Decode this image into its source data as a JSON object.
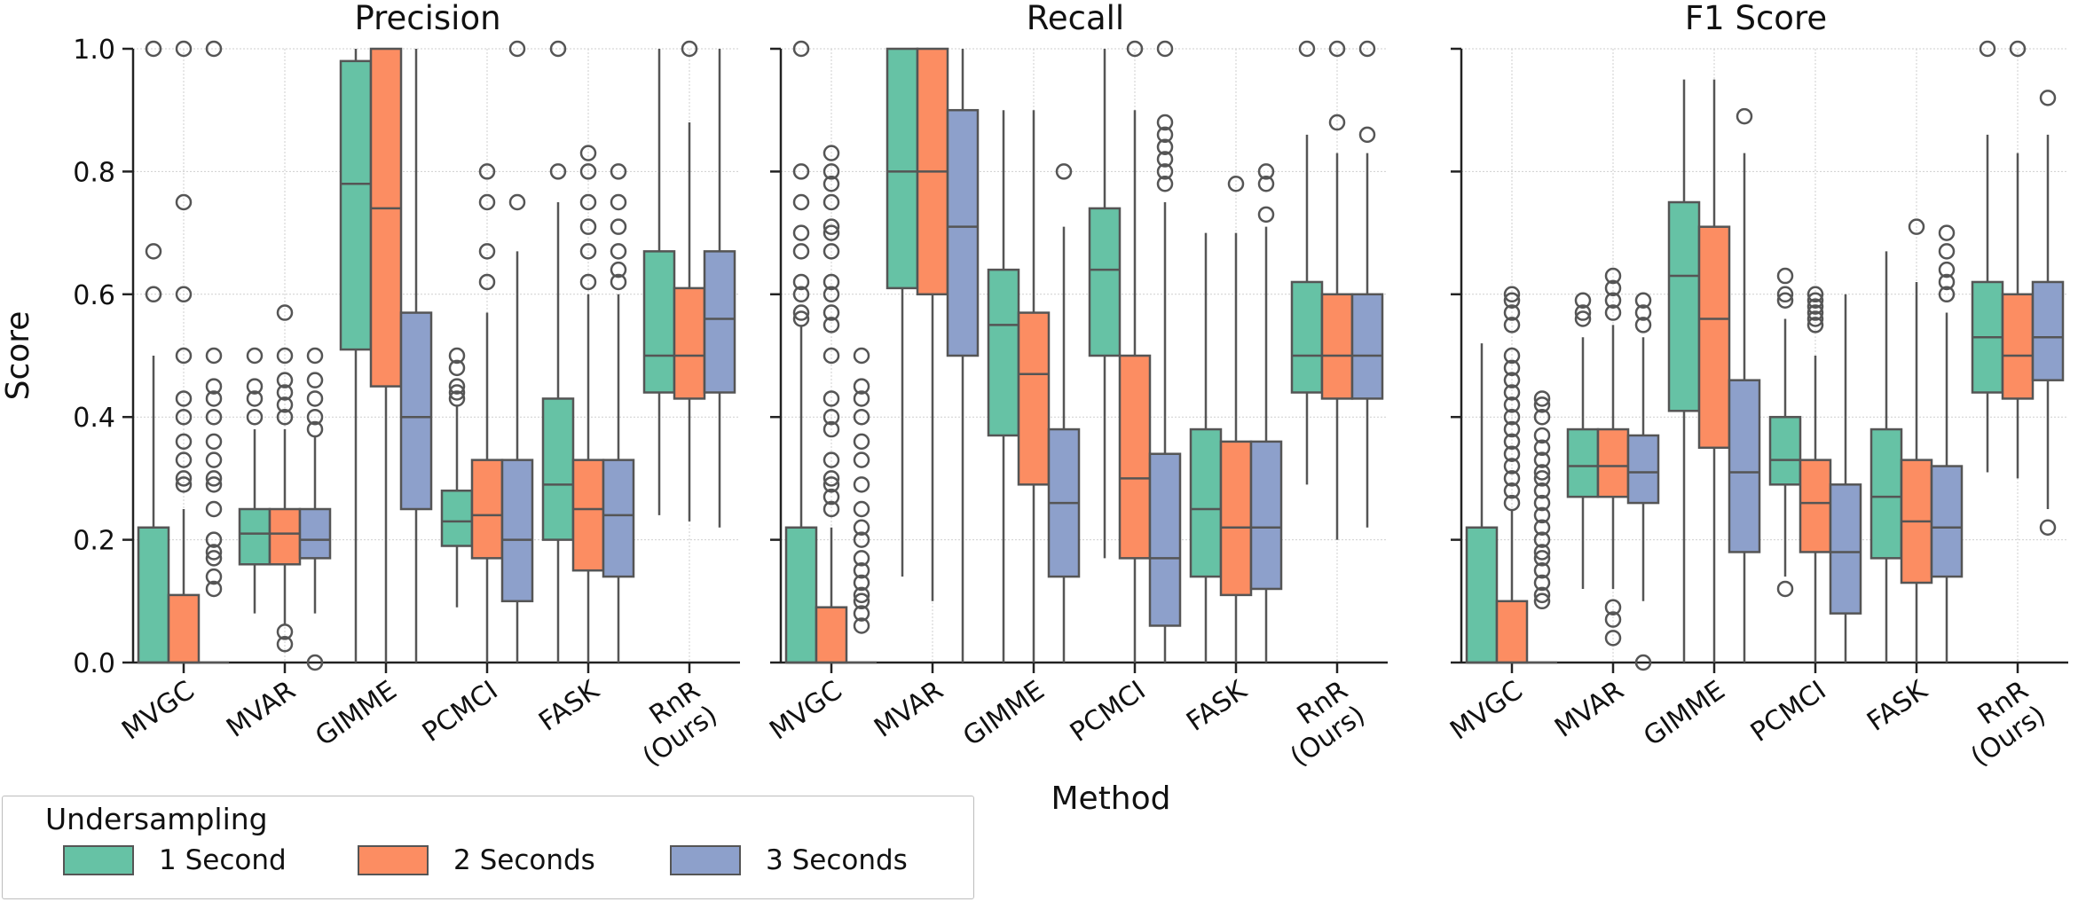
{
  "chart_data": {
    "type": "box",
    "ylabel": "Score",
    "xlabel": "Method",
    "ylim": [
      0,
      1
    ],
    "yticks": [
      "0.0",
      "0.2",
      "0.4",
      "0.6",
      "0.8",
      "1.0"
    ],
    "yticks_values": [
      0,
      0.2,
      0.4,
      0.6,
      0.8,
      1.0
    ],
    "categories": [
      [
        "MVGC"
      ],
      [
        "MVAR"
      ],
      [
        "GIMME"
      ],
      [
        "PCMCI"
      ],
      [
        "FASK"
      ],
      [
        "RnR",
        "(Ours)"
      ]
    ],
    "legend": {
      "title": "Undersampling",
      "position": "bottom-left",
      "entries": [
        "1 Second",
        "2 Seconds",
        "3 Seconds"
      ],
      "colors": [
        "#66c2a5",
        "#fc8d62",
        "#8da0cb"
      ]
    },
    "panels": [
      {
        "title": "Precision",
        "boxes": [
          [
            {
              "q1": 0,
              "median": 0,
              "q3": 0.22,
              "wlo": 0,
              "whi": 0.5,
              "outliers": [
                0.6,
                0.67,
                1.0
              ]
            },
            {
              "q1": 0,
              "median": 0,
              "q3": 0.11,
              "wlo": 0,
              "whi": 0.25,
              "outliers": [
                0.29,
                0.3,
                0.33,
                0.36,
                0.4,
                0.43,
                0.5,
                0.6,
                0.75,
                1.0
              ]
            },
            {
              "q1": 0,
              "median": 0,
              "q3": 0,
              "wlo": 0,
              "whi": 0,
              "outliers": [
                0.12,
                0.14,
                0.17,
                0.18,
                0.2,
                0.25,
                0.29,
                0.3,
                0.33,
                0.36,
                0.4,
                0.43,
                0.45,
                0.5,
                1.0
              ]
            }
          ],
          [
            {
              "q1": 0.16,
              "median": 0.21,
              "q3": 0.25,
              "wlo": 0.08,
              "whi": 0.38,
              "outliers": [
                0.4,
                0.43,
                0.45,
                0.5
              ]
            },
            {
              "q1": 0.16,
              "median": 0.21,
              "q3": 0.25,
              "wlo": 0.06,
              "whi": 0.38,
              "outliers": [
                0.03,
                0.05,
                0.4,
                0.42,
                0.44,
                0.46,
                0.5,
                0.57
              ]
            },
            {
              "q1": 0.17,
              "median": 0.2,
              "q3": 0.25,
              "wlo": 0.08,
              "whi": 0.37,
              "outliers": [
                0.0,
                0.38,
                0.4,
                0.43,
                0.46,
                0.5
              ]
            }
          ],
          [
            {
              "q1": 0.51,
              "median": 0.78,
              "q3": 0.98,
              "wlo": 0,
              "whi": 1.0,
              "outliers": []
            },
            {
              "q1": 0.45,
              "median": 0.74,
              "q3": 1.0,
              "wlo": 0,
              "whi": 1.0,
              "outliers": []
            },
            {
              "q1": 0.25,
              "median": 0.4,
              "q3": 0.57,
              "wlo": 0,
              "whi": 1.0,
              "outliers": []
            }
          ],
          [
            {
              "q1": 0.19,
              "median": 0.23,
              "q3": 0.28,
              "wlo": 0.09,
              "whi": 0.42,
              "outliers": [
                0.43,
                0.44,
                0.45,
                0.48,
                0.5
              ]
            },
            {
              "q1": 0.17,
              "median": 0.24,
              "q3": 0.33,
              "wlo": 0,
              "whi": 0.57,
              "outliers": [
                0.62,
                0.67,
                0.75,
                0.8
              ]
            },
            {
              "q1": 0.1,
              "median": 0.2,
              "q3": 0.33,
              "wlo": 0,
              "whi": 0.67,
              "outliers": [
                0.75,
                1.0
              ]
            }
          ],
          [
            {
              "q1": 0.2,
              "median": 0.29,
              "q3": 0.43,
              "wlo": 0,
              "whi": 0.75,
              "outliers": [
                0.8,
                1.0
              ]
            },
            {
              "q1": 0.15,
              "median": 0.25,
              "q3": 0.33,
              "wlo": 0,
              "whi": 0.6,
              "outliers": [
                0.62,
                0.67,
                0.71,
                0.75,
                0.8,
                0.83
              ]
            },
            {
              "q1": 0.14,
              "median": 0.24,
              "q3": 0.33,
              "wlo": 0,
              "whi": 0.6,
              "outliers": [
                0.62,
                0.64,
                0.67,
                0.71,
                0.75,
                0.8
              ]
            }
          ],
          [
            {
              "q1": 0.44,
              "median": 0.5,
              "q3": 0.67,
              "wlo": 0.24,
              "whi": 1.0,
              "outliers": []
            },
            {
              "q1": 0.43,
              "median": 0.5,
              "q3": 0.61,
              "wlo": 0.23,
              "whi": 0.88,
              "outliers": [
                1.0
              ]
            },
            {
              "q1": 0.44,
              "median": 0.56,
              "q3": 0.67,
              "wlo": 0.22,
              "whi": 1.0,
              "outliers": []
            }
          ]
        ]
      },
      {
        "title": "Recall",
        "boxes": [
          [
            {
              "q1": 0,
              "median": 0,
              "q3": 0.22,
              "wlo": 0,
              "whi": 0.55,
              "outliers": [
                0.56,
                0.57,
                0.6,
                0.62,
                0.67,
                0.7,
                0.75,
                0.8,
                1.0
              ]
            },
            {
              "q1": 0,
              "median": 0,
              "q3": 0.09,
              "wlo": 0,
              "whi": 0.22,
              "outliers": [
                0.25,
                0.27,
                0.29,
                0.3,
                0.33,
                0.38,
                0.4,
                0.43,
                0.5,
                0.55,
                0.57,
                0.6,
                0.62,
                0.67,
                0.7,
                0.71,
                0.75,
                0.78,
                0.8,
                0.83
              ]
            },
            {
              "q1": 0,
              "median": 0,
              "q3": 0,
              "wlo": 0,
              "whi": 0,
              "outliers": [
                0.06,
                0.08,
                0.1,
                0.11,
                0.13,
                0.15,
                0.17,
                0.2,
                0.22,
                0.25,
                0.29,
                0.33,
                0.36,
                0.4,
                0.43,
                0.45,
                0.5
              ]
            }
          ],
          [
            {
              "q1": 0.61,
              "median": 0.8,
              "q3": 1.0,
              "wlo": 0.14,
              "whi": 1.0,
              "outliers": []
            },
            {
              "q1": 0.6,
              "median": 0.8,
              "q3": 1.0,
              "wlo": 0.1,
              "whi": 1.0,
              "outliers": []
            },
            {
              "q1": 0.5,
              "median": 0.71,
              "q3": 0.9,
              "wlo": 0,
              "whi": 1.0,
              "outliers": []
            }
          ],
          [
            {
              "q1": 0.37,
              "median": 0.55,
              "q3": 0.64,
              "wlo": 0,
              "whi": 0.9,
              "outliers": []
            },
            {
              "q1": 0.29,
              "median": 0.47,
              "q3": 0.57,
              "wlo": 0,
              "whi": 0.9,
              "outliers": []
            },
            {
              "q1": 0.14,
              "median": 0.26,
              "q3": 0.38,
              "wlo": 0,
              "whi": 0.71,
              "outliers": [
                0.8
              ]
            }
          ],
          [
            {
              "q1": 0.5,
              "median": 0.64,
              "q3": 0.74,
              "wlo": 0.17,
              "whi": 1.0,
              "outliers": []
            },
            {
              "q1": 0.17,
              "median": 0.3,
              "q3": 0.5,
              "wlo": 0,
              "whi": 0.9,
              "outliers": [
                1.0
              ]
            },
            {
              "q1": 0.06,
              "median": 0.17,
              "q3": 0.34,
              "wlo": 0,
              "whi": 0.75,
              "outliers": [
                0.78,
                0.8,
                0.82,
                0.84,
                0.86,
                0.88,
                1.0
              ]
            }
          ],
          [
            {
              "q1": 0.14,
              "median": 0.25,
              "q3": 0.38,
              "wlo": 0,
              "whi": 0.7,
              "outliers": []
            },
            {
              "q1": 0.11,
              "median": 0.22,
              "q3": 0.36,
              "wlo": 0,
              "whi": 0.7,
              "outliers": [
                0.78
              ]
            },
            {
              "q1": 0.12,
              "median": 0.22,
              "q3": 0.36,
              "wlo": 0,
              "whi": 0.71,
              "outliers": [
                0.73,
                0.78,
                0.8
              ]
            }
          ],
          [
            {
              "q1": 0.44,
              "median": 0.5,
              "q3": 0.62,
              "wlo": 0.29,
              "whi": 0.86,
              "outliers": [
                1.0
              ]
            },
            {
              "q1": 0.43,
              "median": 0.5,
              "q3": 0.6,
              "wlo": 0.2,
              "whi": 0.83,
              "outliers": [
                0.88,
                1.0
              ]
            },
            {
              "q1": 0.43,
              "median": 0.5,
              "q3": 0.6,
              "wlo": 0.22,
              "whi": 0.83,
              "outliers": [
                0.86,
                1.0
              ]
            }
          ]
        ]
      },
      {
        "title": "F1 Score",
        "boxes": [
          [
            {
              "q1": 0,
              "median": 0,
              "q3": 0.22,
              "wlo": 0,
              "whi": 0.52,
              "outliers": []
            },
            {
              "q1": 0,
              "median": 0,
              "q3": 0.1,
              "wlo": 0,
              "whi": 0.25,
              "outliers": [
                0.26,
                0.28,
                0.3,
                0.32,
                0.34,
                0.36,
                0.38,
                0.4,
                0.42,
                0.44,
                0.46,
                0.48,
                0.5,
                0.55,
                0.57,
                0.59,
                0.6
              ]
            },
            {
              "q1": 0,
              "median": 0,
              "q3": 0,
              "wlo": 0,
              "whi": 0,
              "outliers": [
                0.1,
                0.11,
                0.13,
                0.15,
                0.17,
                0.18,
                0.2,
                0.22,
                0.24,
                0.26,
                0.28,
                0.3,
                0.31,
                0.33,
                0.35,
                0.37,
                0.4,
                0.42,
                0.43
              ]
            }
          ],
          [
            {
              "q1": 0.27,
              "median": 0.32,
              "q3": 0.38,
              "wlo": 0.12,
              "whi": 0.53,
              "outliers": [
                0.56,
                0.57,
                0.59
              ]
            },
            {
              "q1": 0.27,
              "median": 0.32,
              "q3": 0.38,
              "wlo": 0.12,
              "whi": 0.55,
              "outliers": [
                0.04,
                0.07,
                0.09,
                0.57,
                0.59,
                0.61,
                0.63
              ]
            },
            {
              "q1": 0.26,
              "median": 0.31,
              "q3": 0.37,
              "wlo": 0.1,
              "whi": 0.53,
              "outliers": [
                0.0,
                0.55,
                0.57,
                0.59
              ]
            }
          ],
          [
            {
              "q1": 0.41,
              "median": 0.63,
              "q3": 0.75,
              "wlo": 0,
              "whi": 0.95,
              "outliers": []
            },
            {
              "q1": 0.35,
              "median": 0.56,
              "q3": 0.71,
              "wlo": 0,
              "whi": 0.95,
              "outliers": []
            },
            {
              "q1": 0.18,
              "median": 0.31,
              "q3": 0.46,
              "wlo": 0,
              "whi": 0.83,
              "outliers": [
                0.89
              ]
            }
          ],
          [
            {
              "q1": 0.29,
              "median": 0.33,
              "q3": 0.4,
              "wlo": 0.14,
              "whi": 0.56,
              "outliers": [
                0.12,
                0.59,
                0.6,
                0.63
              ]
            },
            {
              "q1": 0.18,
              "median": 0.26,
              "q3": 0.33,
              "wlo": 0,
              "whi": 0.5,
              "outliers": [
                0.55,
                0.56,
                0.57,
                0.58,
                0.59,
                0.6
              ]
            },
            {
              "q1": 0.08,
              "median": 0.18,
              "q3": 0.29,
              "wlo": 0,
              "whi": 0.6,
              "outliers": []
            }
          ],
          [
            {
              "q1": 0.17,
              "median": 0.27,
              "q3": 0.38,
              "wlo": 0,
              "whi": 0.67,
              "outliers": []
            },
            {
              "q1": 0.13,
              "median": 0.23,
              "q3": 0.33,
              "wlo": 0,
              "whi": 0.62,
              "outliers": [
                0.71
              ]
            },
            {
              "q1": 0.14,
              "median": 0.22,
              "q3": 0.32,
              "wlo": 0,
              "whi": 0.57,
              "outliers": [
                0.6,
                0.62,
                0.64,
                0.67,
                0.7
              ]
            }
          ],
          [
            {
              "q1": 0.44,
              "median": 0.53,
              "q3": 0.62,
              "wlo": 0.31,
              "whi": 0.86,
              "outliers": [
                1.0
              ]
            },
            {
              "q1": 0.43,
              "median": 0.5,
              "q3": 0.6,
              "wlo": 0.3,
              "whi": 0.83,
              "outliers": [
                1.0
              ]
            },
            {
              "q1": 0.46,
              "median": 0.53,
              "q3": 0.62,
              "wlo": 0.25,
              "whi": 0.86,
              "outliers": [
                0.22,
                0.92
              ]
            }
          ]
        ]
      }
    ]
  }
}
